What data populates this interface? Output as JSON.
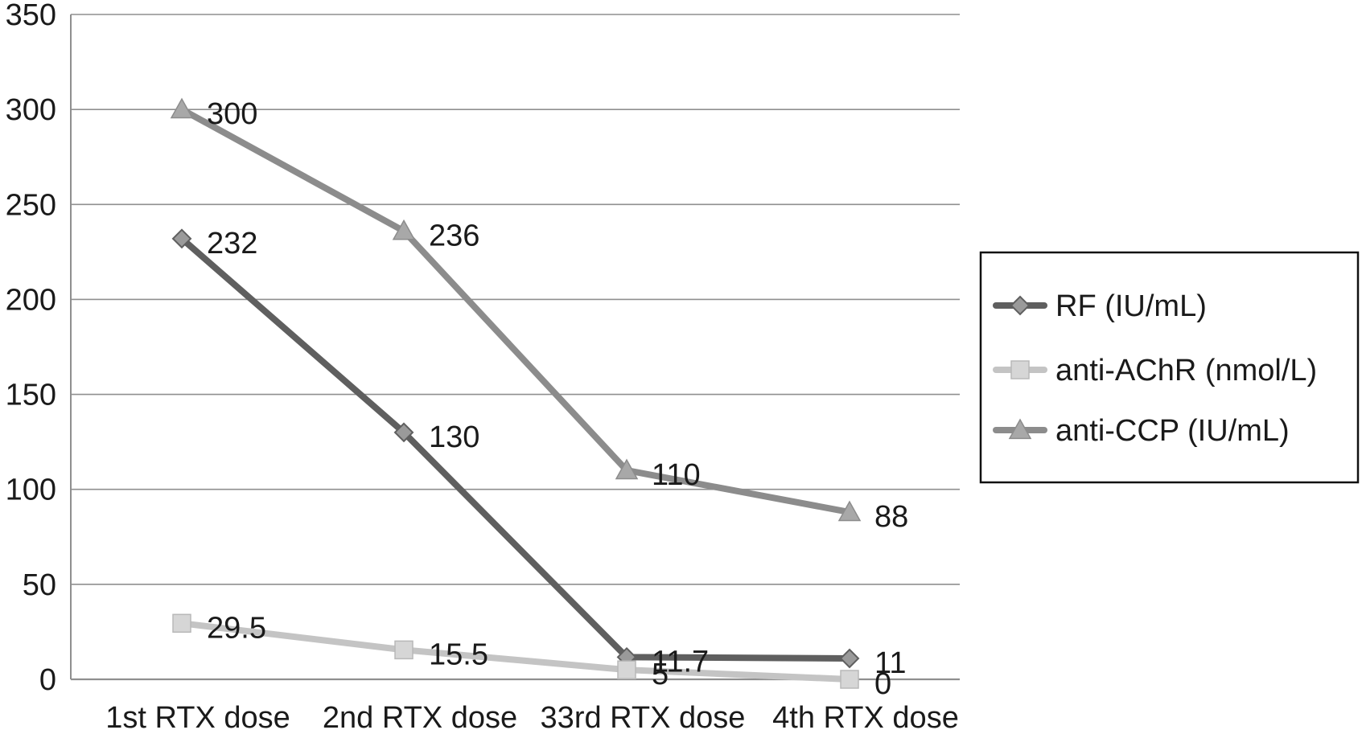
{
  "chart_data": {
    "type": "line",
    "title": "",
    "xlabel": "",
    "ylabel": "",
    "categories": [
      "1st RTX dose",
      "2nd RTX dose",
      "33rd RTX dose",
      "4th RTX dose"
    ],
    "ylim": [
      0,
      350
    ],
    "yticks": [
      0,
      50,
      100,
      150,
      200,
      250,
      300,
      350
    ],
    "grid": true,
    "legend_position": "right",
    "series": [
      {
        "name": "RF (IU/mL)",
        "values": [
          232,
          130,
          11.7,
          11
        ],
        "labels": [
          "232",
          "130",
          "11.7",
          "11"
        ],
        "marker": "diamond",
        "color": "#5f5f5f",
        "marker_fill": "#9a9a9a"
      },
      {
        "name": "anti-AChR (nmol/L)",
        "values": [
          29.5,
          15.5,
          5,
          0
        ],
        "labels": [
          "29.5",
          "15.5",
          "5",
          "0"
        ],
        "marker": "square",
        "color": "#c4c4c4",
        "marker_fill": "#d6d6d6"
      },
      {
        "name": "anti-CCP (IU/mL)",
        "values": [
          300,
          236,
          110,
          88
        ],
        "labels": [
          "300",
          "236",
          "110",
          "88"
        ],
        "marker": "triangle",
        "color": "#8c8c8c",
        "marker_fill": "#a8a8a8"
      }
    ]
  }
}
